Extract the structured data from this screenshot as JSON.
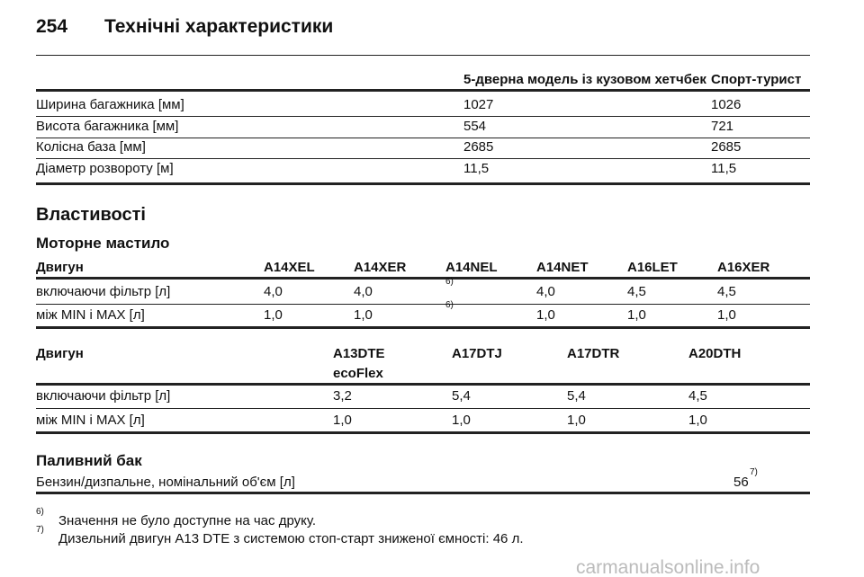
{
  "header": {
    "page": "254",
    "title": "Технічні характеристики"
  },
  "dimensions": {
    "columns": [
      "5-дверна модель із кузовом хетчбек",
      "Спорт-турист"
    ],
    "rows": [
      [
        "Ширина багажника [мм]",
        "1027",
        "1026"
      ],
      [
        "Висота багажника [мм]",
        "554",
        "721"
      ],
      [
        "Колісна база [мм]",
        "2685",
        "2685"
      ],
      [
        "Діаметр розвороту [м]",
        "11,5",
        "11,5"
      ]
    ]
  },
  "section": "Властивості",
  "oil": {
    "title": "Моторне мастило",
    "table1": {
      "header": [
        "Двигун",
        "A14XEL",
        "A14XER",
        "A14NEL",
        "A14NET",
        "A16LET",
        "A16XER"
      ],
      "rows": [
        [
          "включаючи фільтр [л]",
          "4,0",
          "4,0",
          "6)",
          "4,0",
          "4,5",
          "4,5"
        ],
        [
          "між MIN і MAX [л]",
          "1,0",
          "1,0",
          "6)",
          "1,0",
          "1,0",
          "1,0"
        ]
      ]
    },
    "table2": {
      "header": [
        "Двигун",
        "A13DTE\necoFlex",
        "A17DTJ",
        "A17DTR",
        "A20DTH"
      ],
      "rows": [
        [
          "включаючи фільтр [л]",
          "3,2",
          "5,4",
          "5,4",
          "4,5"
        ],
        [
          "між MIN і MAX [л]",
          "1,0",
          "1,0",
          "1,0",
          "1,0"
        ]
      ]
    }
  },
  "fuel": {
    "title": "Паливний бак",
    "row": {
      "label": "Бензин/дизпальне, номінальний об'єм [л]",
      "value": "56",
      "note": "7)"
    }
  },
  "footnotes": [
    {
      "mark": "6)",
      "text": "Значення не було доступне на час друку."
    },
    {
      "mark": "7)",
      "text": "Дизельний двигун A13 DTE з системою стоп-старт зниженої ємності: 46 л."
    }
  ],
  "watermark": "carmanualsonline.info"
}
